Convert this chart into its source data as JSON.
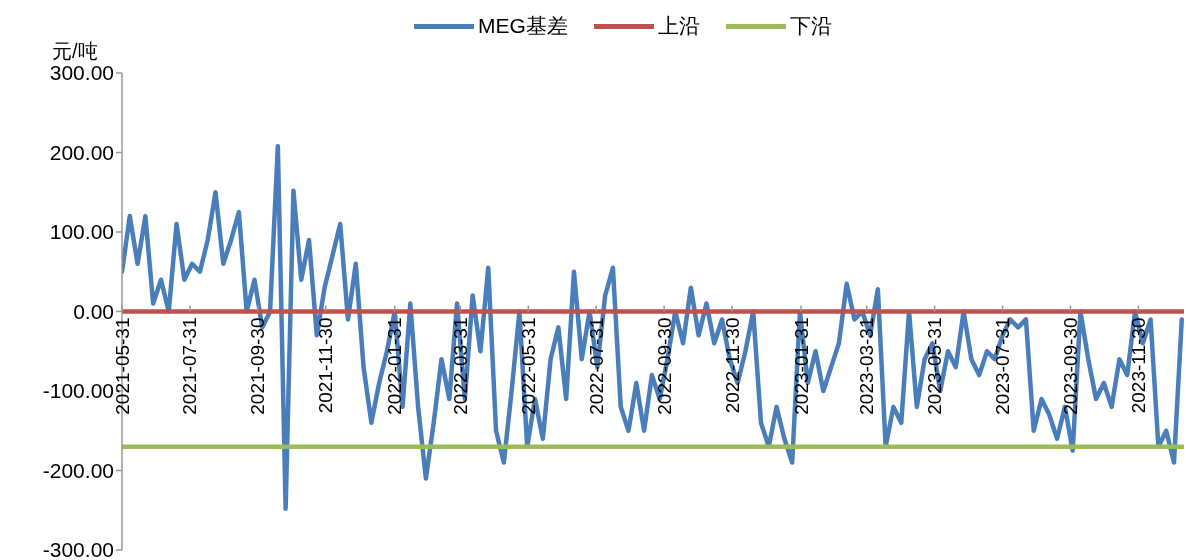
{
  "chart_data": {
    "type": "line",
    "ylabel": "元/吨",
    "legend": "top",
    "grid": false,
    "x": [
      "2021-05-31",
      "2021-06-07",
      "2021-06-14",
      "2021-06-21",
      "2021-06-28",
      "2021-07-05",
      "2021-07-12",
      "2021-07-19",
      "2021-07-26",
      "2021-08-02",
      "2021-08-09",
      "2021-08-16",
      "2021-08-23",
      "2021-08-30",
      "2021-09-06",
      "2021-09-13",
      "2021-09-20",
      "2021-09-27",
      "2021-10-04",
      "2021-10-11",
      "2021-10-18",
      "2021-10-25",
      "2021-11-01",
      "2021-11-08",
      "2021-11-15",
      "2021-11-22",
      "2021-11-29",
      "2021-12-06",
      "2021-12-13",
      "2021-12-20",
      "2021-12-27",
      "2022-01-03",
      "2022-01-10",
      "2022-01-17",
      "2022-01-24",
      "2022-01-31",
      "2022-02-07",
      "2022-02-14",
      "2022-02-21",
      "2022-02-28",
      "2022-03-07",
      "2022-03-14",
      "2022-03-21",
      "2022-03-28",
      "2022-04-04",
      "2022-04-11",
      "2022-04-18",
      "2022-04-25",
      "2022-05-02",
      "2022-05-09",
      "2022-05-16",
      "2022-05-23",
      "2022-05-30",
      "2022-06-06",
      "2022-06-13",
      "2022-06-20",
      "2022-06-27",
      "2022-07-04",
      "2022-07-11",
      "2022-07-18",
      "2022-07-25",
      "2022-08-01",
      "2022-08-08",
      "2022-08-15",
      "2022-08-22",
      "2022-08-29",
      "2022-09-05",
      "2022-09-12",
      "2022-09-19",
      "2022-09-26",
      "2022-10-03",
      "2022-10-10",
      "2022-10-17",
      "2022-10-24",
      "2022-10-31",
      "2022-11-07",
      "2022-11-14",
      "2022-11-21",
      "2022-11-28",
      "2022-12-05",
      "2022-12-12",
      "2022-12-19",
      "2022-12-26",
      "2023-01-02",
      "2023-01-09",
      "2023-01-16",
      "2023-01-23",
      "2023-01-30",
      "2023-02-06",
      "2023-02-13",
      "2023-02-20",
      "2023-02-27",
      "2023-03-06",
      "2023-03-13",
      "2023-03-20",
      "2023-03-27",
      "2023-04-03",
      "2023-04-10",
      "2023-04-17",
      "2023-04-24",
      "2023-05-01",
      "2023-05-08",
      "2023-05-15",
      "2023-05-22",
      "2023-05-29",
      "2023-06-05",
      "2023-06-12",
      "2023-06-19",
      "2023-06-26",
      "2023-07-03",
      "2023-07-10",
      "2023-07-17",
      "2023-07-24",
      "2023-07-31",
      "2023-08-07",
      "2023-08-14",
      "2023-08-21",
      "2023-08-28",
      "2023-09-04",
      "2023-09-11",
      "2023-09-18",
      "2023-09-25",
      "2023-10-02",
      "2023-10-09",
      "2023-10-16",
      "2023-10-23",
      "2023-10-30",
      "2023-11-06",
      "2023-11-13",
      "2023-11-20",
      "2023-11-27",
      "2023-12-04",
      "2023-12-11",
      "2023-12-18",
      "2023-12-25",
      "2024-01-01",
      "2024-01-08"
    ],
    "series": [
      {
        "name": "MEG基差",
        "color": "#4a7ebb",
        "values": [
          50,
          120,
          60,
          120,
          10,
          40,
          0,
          110,
          40,
          60,
          50,
          90,
          150,
          60,
          90,
          125,
          0,
          40,
          -20,
          0,
          208,
          -248,
          152,
          40,
          90,
          -30,
          30,
          70,
          110,
          -10,
          60,
          -70,
          -140,
          -90,
          -50,
          0,
          -120,
          10,
          -120,
          -210,
          -140,
          -60,
          -110,
          10,
          -110,
          20,
          -50,
          55,
          -150,
          -190,
          -100,
          0,
          -170,
          -110,
          -160,
          -60,
          -20,
          -110,
          50,
          -60,
          0,
          -70,
          20,
          55,
          -120,
          -150,
          -90,
          -150,
          -80,
          -110,
          -60,
          0,
          -40,
          30,
          -30,
          10,
          -40,
          -10,
          -60,
          -90,
          -50,
          0,
          -140,
          -170,
          -120,
          -160,
          -190,
          0,
          -90,
          -50,
          -100,
          -70,
          -40,
          35,
          -10,
          0,
          -30,
          28,
          -170,
          -120,
          -140,
          0,
          -120,
          -60,
          -40,
          -100,
          -50,
          -70,
          0,
          -60,
          -80,
          -50,
          -60,
          -30,
          -10,
          -20,
          -10,
          -150,
          -110,
          -130,
          -160,
          -120,
          -175,
          0,
          -60,
          -110,
          -90,
          -120,
          -60,
          -80,
          0,
          -40,
          -10,
          -170,
          -150,
          -190,
          -10
        ]
      },
      {
        "name": "上沿",
        "color": "#c0504d",
        "x": [
          "2021-05-31",
          "2024-01-10"
        ],
        "values": [
          0,
          0
        ]
      },
      {
        "name": "下沿",
        "color": "#9bbb59",
        "x": [
          "2021-05-31",
          "2024-01-10"
        ],
        "values": [
          -170,
          -170
        ]
      }
    ],
    "xlim": [
      "2021-05-31",
      "2024-01-10"
    ],
    "xticks": [
      "2021-05-31",
      "2021-07-31",
      "2021-09-30",
      "2021-11-30",
      "2022-01-31",
      "2022-03-31",
      "2022-05-31",
      "2022-07-31",
      "2022-09-30",
      "2022-11-30",
      "2023-01-31",
      "2023-03-31",
      "2023-05-31",
      "2023-07-31",
      "2023-09-30",
      "2023-11-30"
    ],
    "ylim": [
      -300,
      300
    ],
    "yticks": [
      {
        "value": 300,
        "label": "300.00"
      },
      {
        "value": 200,
        "label": "200.00"
      },
      {
        "value": 100,
        "label": "100.00"
      },
      {
        "value": 0,
        "label": "0.00"
      },
      {
        "value": -100,
        "label": "-100.00"
      },
      {
        "value": -200,
        "label": "-200.00"
      },
      {
        "value": -300,
        "label": "-300.00"
      }
    ]
  }
}
